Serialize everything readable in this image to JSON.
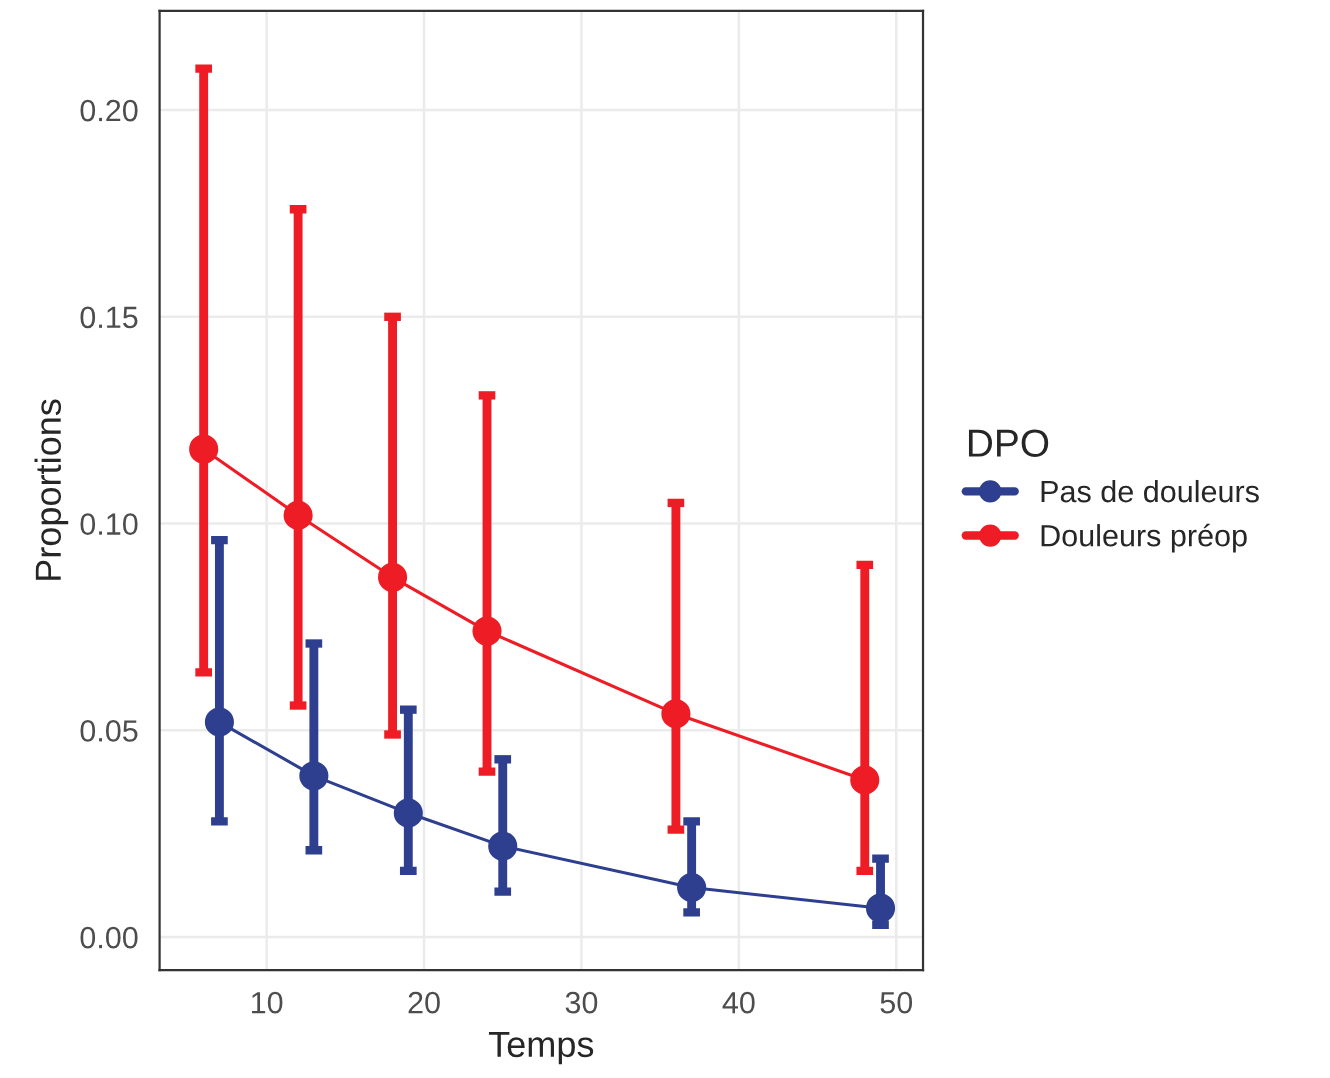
{
  "chart_data": {
    "type": "line",
    "xlabel": "Temps",
    "ylabel": "Proportions",
    "legend_title": "DPO",
    "xlim": [
      3.2,
      51.7
    ],
    "xticks": [
      10,
      20,
      30,
      40,
      50
    ],
    "ylim": [
      -0.008,
      0.224
    ],
    "yticks": [
      {
        "value": 0,
        "label": "0.00"
      },
      {
        "value": 0.05,
        "label": "0.05"
      },
      {
        "value": 0.1,
        "label": "0.10"
      },
      {
        "value": 0.15,
        "label": "0.15"
      },
      {
        "value": 0.2,
        "label": "0.20"
      }
    ],
    "grid": true,
    "legend": "right",
    "marker": "circle",
    "line_style": "solid",
    "series": [
      {
        "name": "Pas de douleurs",
        "color": "#2e3f8f",
        "x": [
          7,
          13,
          19,
          25,
          37,
          49
        ],
        "values": [
          0.052,
          0.039,
          0.03,
          0.022,
          0.012,
          0.007
        ],
        "errors": [
          [
            0.028,
            0.096
          ],
          [
            0.021,
            0.071
          ],
          [
            0.016,
            0.055
          ],
          [
            0.011,
            0.043
          ],
          [
            0.006,
            0.028
          ],
          [
            0.003,
            0.019
          ]
        ]
      },
      {
        "name": "Douleurs préop",
        "color": "#ee1c25",
        "x": [
          6,
          12,
          18,
          24,
          36,
          48
        ],
        "values": [
          0.118,
          0.102,
          0.087,
          0.074,
          0.054,
          0.038
        ],
        "errors": [
          [
            0.064,
            0.21
          ],
          [
            0.056,
            0.176
          ],
          [
            0.049,
            0.15
          ],
          [
            0.04,
            0.131
          ],
          [
            0.026,
            0.105
          ],
          [
            0.016,
            0.09
          ]
        ]
      }
    ]
  }
}
